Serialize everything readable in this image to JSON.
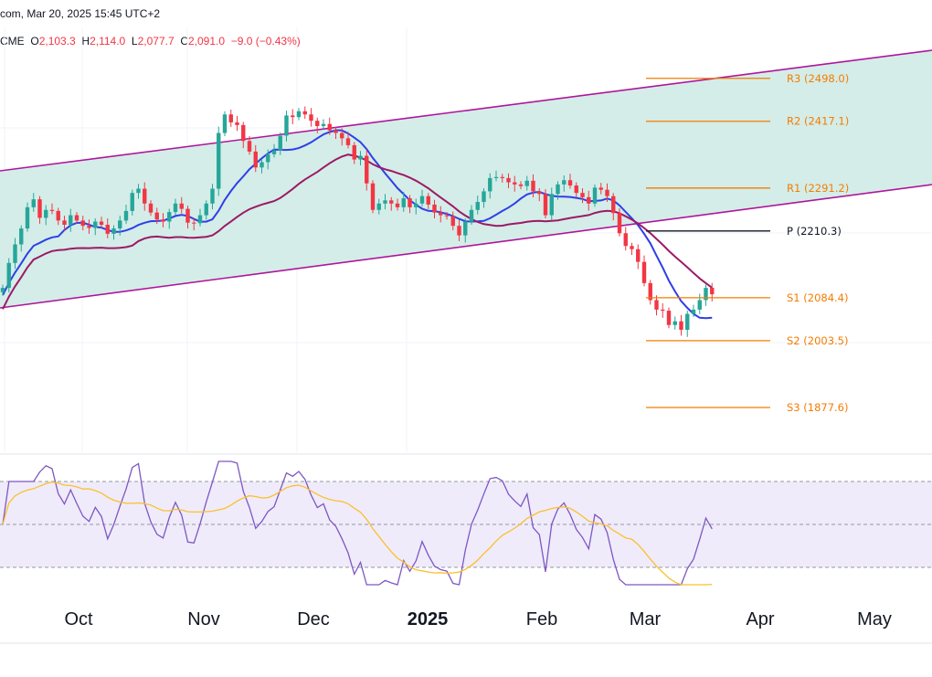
{
  "header": {
    "source_fragment": "com, Mar 20, 2025 15:45 UTC+2",
    "exchange": "CME",
    "open_label": "O",
    "open_value": "2,103.3",
    "high_label": "H",
    "high_value": "2,114.0",
    "low_label": "L",
    "low_value": "2,077.7",
    "close_label": "C",
    "close_value": "2,091.0",
    "change": "−9.0 (−0.43%)"
  },
  "colors": {
    "bull": "#26a69a",
    "bear": "#f23645",
    "channel_fill": "#d4ede8",
    "channel_line": "#b0159a",
    "ma_fast": "#2f3fe8",
    "ma_slow": "#9c1a66",
    "pivot_orange": "#f57c00",
    "pivot_black": "#131722",
    "rsi_line": "#7e57c2",
    "rsi_ma": "#fbc02d",
    "rsi_band": "#efebfa"
  },
  "chart_data": [
    {
      "type": "candlestick",
      "title": "",
      "x_axis_labels": [
        "Oct",
        "Nov",
        "Dec",
        "2025",
        "Feb",
        "Mar",
        "Apr",
        "May"
      ],
      "price_range": [
        1800,
        2620
      ],
      "pivot_levels": [
        {
          "label": "R3 (2498.0)",
          "value": 2498.0,
          "color": "orange"
        },
        {
          "label": "R2 (2417.1)",
          "value": 2417.1,
          "color": "orange"
        },
        {
          "label": "R1 (2291.2)",
          "value": 2291.2,
          "color": "orange"
        },
        {
          "label": "P (2210.3)",
          "value": 2210.3,
          "color": "black"
        },
        {
          "label": "S1 (2084.4)",
          "value": 2084.4,
          "color": "orange"
        },
        {
          "label": "S2 (2003.5)",
          "value": 2003.5,
          "color": "orange"
        },
        {
          "label": "S3 (1877.6)",
          "value": 1877.6,
          "color": "orange"
        }
      ],
      "candles_close": [
        2103,
        2150,
        2185,
        2215,
        2255,
        2270,
        2235,
        2250,
        2248,
        2230,
        2222,
        2240,
        2230,
        2220,
        2216,
        2228,
        2222,
        2205,
        2215,
        2230,
        2248,
        2282,
        2290,
        2262,
        2245,
        2232,
        2228,
        2246,
        2262,
        2252,
        2226,
        2225,
        2240,
        2262,
        2290,
        2395,
        2430,
        2415,
        2410,
        2380,
        2360,
        2330,
        2340,
        2355,
        2362,
        2390,
        2428,
        2425,
        2436,
        2430,
        2418,
        2408,
        2412,
        2400,
        2395,
        2385,
        2372,
        2345,
        2352,
        2300,
        2250,
        2262,
        2268,
        2262,
        2255,
        2272,
        2255,
        2262,
        2276,
        2260,
        2245,
        2240,
        2238,
        2220,
        2202,
        2228,
        2250,
        2265,
        2285,
        2310,
        2312,
        2310,
        2302,
        2298,
        2295,
        2305,
        2285,
        2280,
        2240,
        2280,
        2298,
        2306,
        2296,
        2282,
        2274,
        2262,
        2292,
        2288,
        2276,
        2244,
        2206,
        2182,
        2176,
        2152,
        2112,
        2080,
        2062,
        2060,
        2033,
        2040,
        2024,
        2054,
        2062,
        2080,
        2103,
        2091
      ],
      "rsi_ma_note": "RSI panel with smoothing line; upper band 70, lower band 30"
    }
  ]
}
